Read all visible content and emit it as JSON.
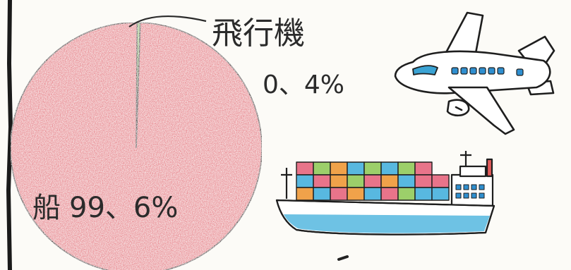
{
  "chart_data": {
    "type": "pie",
    "slices": [
      {
        "label": "船",
        "value": 99.6,
        "value_text": "99、6%",
        "color": "#e8848c"
      },
      {
        "label": "飛行機",
        "value": 0.4,
        "value_text": "0、4%",
        "color": "#9fc77a"
      }
    ]
  },
  "illustrations": {
    "airplane": "airplane-drawing",
    "ship": "container-ship-drawing"
  }
}
